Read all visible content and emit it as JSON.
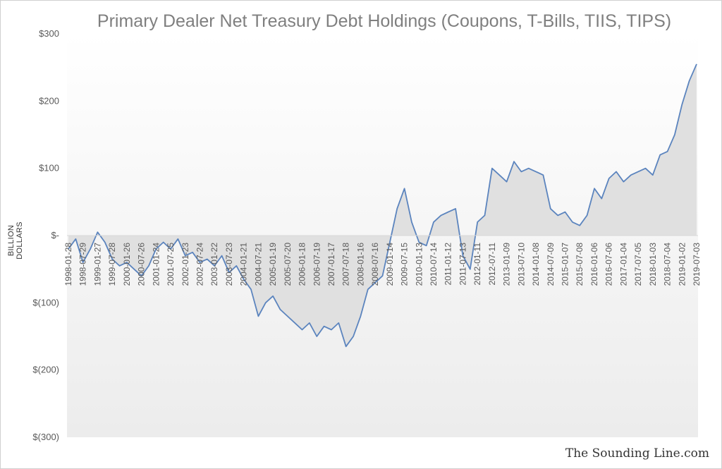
{
  "chart_data": {
    "type": "area",
    "title": "Primary Dealer Net Treasury Debt Holdings (Coupons, T-Bills, TIIS, TIPS)",
    "ylabel": "BILLION DOLLARS",
    "xlabel": "",
    "ylim": [
      -300,
      300
    ],
    "y_ticks": [
      "$300",
      "$200",
      "$100",
      "$-",
      "$(100)",
      "$(200)",
      "$(300)"
    ],
    "y_tick_values": [
      300,
      200,
      100,
      0,
      -100,
      -200,
      -300
    ],
    "x_ticks": [
      "1998-01-28",
      "1998-07-29",
      "1999-01-27",
      "1999-07-28",
      "2000-01-26",
      "2000-07-26",
      "2001-01-24",
      "2001-07-25",
      "2002-01-23",
      "2002-07-24",
      "2003-01-22",
      "2003-07-23",
      "2004-01-21",
      "2004-07-21",
      "2005-01-19",
      "2005-07-20",
      "2006-01-18",
      "2006-07-19",
      "2007-01-17",
      "2007-07-18",
      "2008-01-16",
      "2008-07-16",
      "2009-01-14",
      "2009-07-15",
      "2010-01-13",
      "2010-07-14",
      "2011-01-12",
      "2011-07-13",
      "2012-01-11",
      "2012-07-11",
      "2013-01-09",
      "2013-07-10",
      "2014-01-08",
      "2014-07-09",
      "2015-01-07",
      "2015-07-08",
      "2016-01-06",
      "2016-07-06",
      "2017-01-04",
      "2017-07-05",
      "2018-01-03",
      "2018-07-04",
      "2019-01-02",
      "2019-07-03"
    ],
    "grid": false,
    "series": [
      {
        "color": "#5b84be",
        "fill": "#e0e0e0",
        "x": [
          "1998-01-28",
          "1998-04-29",
          "1998-07-29",
          "1998-10-28",
          "1999-01-27",
          "1999-04-28",
          "1999-07-28",
          "1999-10-27",
          "2000-01-26",
          "2000-04-26",
          "2000-07-26",
          "2000-10-25",
          "2001-01-24",
          "2001-04-25",
          "2001-07-25",
          "2001-10-24",
          "2002-01-23",
          "2002-04-24",
          "2002-07-24",
          "2002-10-23",
          "2003-01-22",
          "2003-04-23",
          "2003-07-23",
          "2003-10-22",
          "2004-01-21",
          "2004-04-21",
          "2004-07-21",
          "2004-10-20",
          "2005-01-19",
          "2005-04-20",
          "2005-07-20",
          "2005-10-19",
          "2006-01-18",
          "2006-04-19",
          "2006-07-19",
          "2006-10-18",
          "2007-01-17",
          "2007-04-18",
          "2007-07-18",
          "2007-10-17",
          "2008-01-16",
          "2008-04-16",
          "2008-07-16",
          "2008-10-15",
          "2009-01-14",
          "2009-04-15",
          "2009-07-15",
          "2009-10-14",
          "2010-01-13",
          "2010-04-14",
          "2010-07-14",
          "2010-10-13",
          "2011-01-12",
          "2011-04-13",
          "2011-07-13",
          "2011-10-12",
          "2012-01-11",
          "2012-04-11",
          "2012-07-11",
          "2012-10-10",
          "2013-01-09",
          "2013-04-10",
          "2013-07-10",
          "2013-10-09",
          "2014-01-08",
          "2014-04-09",
          "2014-07-09",
          "2014-10-08",
          "2015-01-07",
          "2015-04-08",
          "2015-07-08",
          "2015-10-07",
          "2016-01-06",
          "2016-04-06",
          "2016-07-06",
          "2016-10-05",
          "2017-01-04",
          "2017-04-05",
          "2017-07-05",
          "2017-10-04",
          "2018-01-03",
          "2018-04-04",
          "2018-07-04",
          "2018-10-03",
          "2019-01-02",
          "2019-04-03",
          "2019-07-03"
        ],
        "values": [
          -20,
          -5,
          -40,
          -20,
          5,
          -10,
          -35,
          -45,
          -40,
          -50,
          -60,
          -45,
          -20,
          -10,
          -20,
          -5,
          -30,
          -25,
          -40,
          -35,
          -45,
          -30,
          -55,
          -45,
          -65,
          -80,
          -120,
          -100,
          -90,
          -110,
          -120,
          -130,
          -140,
          -130,
          -150,
          -135,
          -140,
          -130,
          -165,
          -150,
          -120,
          -80,
          -70,
          -60,
          -10,
          40,
          70,
          20,
          -10,
          -15,
          20,
          30,
          35,
          40,
          -30,
          -50,
          20,
          30,
          100,
          90,
          80,
          110,
          95,
          100,
          95,
          90,
          40,
          30,
          35,
          20,
          15,
          30,
          70,
          55,
          85,
          95,
          80,
          90,
          95,
          100,
          90,
          120,
          125,
          150,
          195,
          230,
          255
        ]
      }
    ]
  },
  "watermark": "The Sounding Line.com"
}
